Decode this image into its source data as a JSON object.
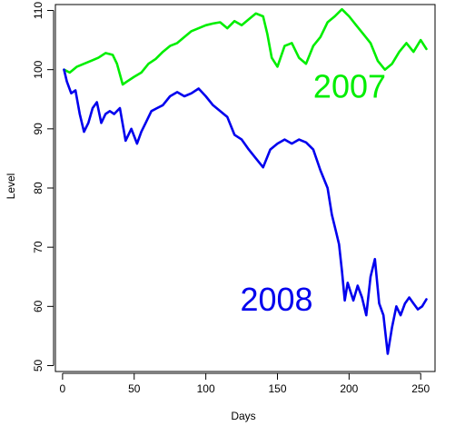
{
  "chart_data": {
    "type": "line",
    "title": "",
    "xlabel": "Days",
    "ylabel": "Level",
    "xlim": [
      -5,
      260
    ],
    "ylim": [
      49,
      111
    ],
    "x_ticks": [
      0,
      50,
      100,
      150,
      200,
      250
    ],
    "y_ticks": [
      50,
      60,
      70,
      80,
      90,
      100,
      110
    ],
    "grid": false,
    "annotations": [
      {
        "text": "2007",
        "series": 0,
        "x": 175,
        "y": 95.3,
        "color": "#00ee00"
      },
      {
        "text": "2008",
        "series": 1,
        "x": 124,
        "y": 59.3,
        "color": "#0000ee"
      }
    ],
    "series": [
      {
        "color": "#00ee00",
        "x": [
          1,
          5,
          10,
          15,
          20,
          25,
          30,
          35,
          38,
          42,
          45,
          50,
          55,
          60,
          65,
          70,
          75,
          80,
          85,
          90,
          95,
          100,
          105,
          110,
          115,
          120,
          125,
          130,
          135,
          140,
          143,
          146,
          150,
          155,
          160,
          165,
          170,
          175,
          180,
          185,
          190,
          195,
          200,
          205,
          210,
          215,
          220,
          225,
          230,
          235,
          240,
          245,
          250,
          254
        ],
        "values": [
          100,
          99.5,
          100.5,
          101,
          101.5,
          102,
          102.8,
          102.5,
          101,
          97.5,
          98,
          98.8,
          99.5,
          101,
          101.8,
          103,
          104,
          104.5,
          105.5,
          106.5,
          107,
          107.5,
          107.8,
          108,
          107,
          108.2,
          107.5,
          108.5,
          109.5,
          109,
          106,
          102,
          100.5,
          104,
          104.5,
          102,
          101,
          104,
          105.5,
          108,
          109,
          110.2,
          109,
          107.5,
          106,
          104.5,
          101.5,
          100,
          101,
          103,
          104.5,
          103,
          105,
          103.5
        ]
      },
      {
        "color": "#0000ee",
        "x": [
          1,
          3,
          6,
          9,
          12,
          15,
          18,
          21,
          24,
          27,
          30,
          33,
          36,
          40,
          44,
          48,
          52,
          55,
          58,
          62,
          66,
          70,
          75,
          80,
          85,
          90,
          95,
          100,
          105,
          110,
          115,
          120,
          125,
          130,
          135,
          140,
          145,
          150,
          155,
          160,
          165,
          170,
          175,
          180,
          185,
          188,
          191,
          193,
          195,
          197,
          199,
          201,
          203,
          206,
          209,
          212,
          215,
          218,
          221,
          224,
          227,
          230,
          233,
          236,
          239,
          242,
          245,
          248,
          251,
          254
        ],
        "values": [
          100,
          98,
          96,
          96.5,
          92.5,
          89.5,
          91,
          93.5,
          94.5,
          91,
          92.5,
          93,
          92.5,
          93.5,
          88,
          90,
          87.5,
          89.5,
          91,
          93,
          93.5,
          94,
          95.5,
          96.2,
          95.5,
          96,
          96.8,
          95.5,
          94,
          93,
          92,
          89,
          88.2,
          86.5,
          85,
          83.5,
          86.5,
          87.5,
          88.2,
          87.5,
          88.2,
          87.7,
          86.5,
          83,
          80,
          75.5,
          72.5,
          70.5,
          66,
          61,
          64,
          62.5,
          61,
          63.5,
          61.5,
          58.5,
          65,
          68,
          60.5,
          58.5,
          52,
          56.5,
          60,
          58.5,
          60.5,
          61.5,
          60.5,
          59.5,
          60,
          61.2
        ]
      }
    ]
  }
}
